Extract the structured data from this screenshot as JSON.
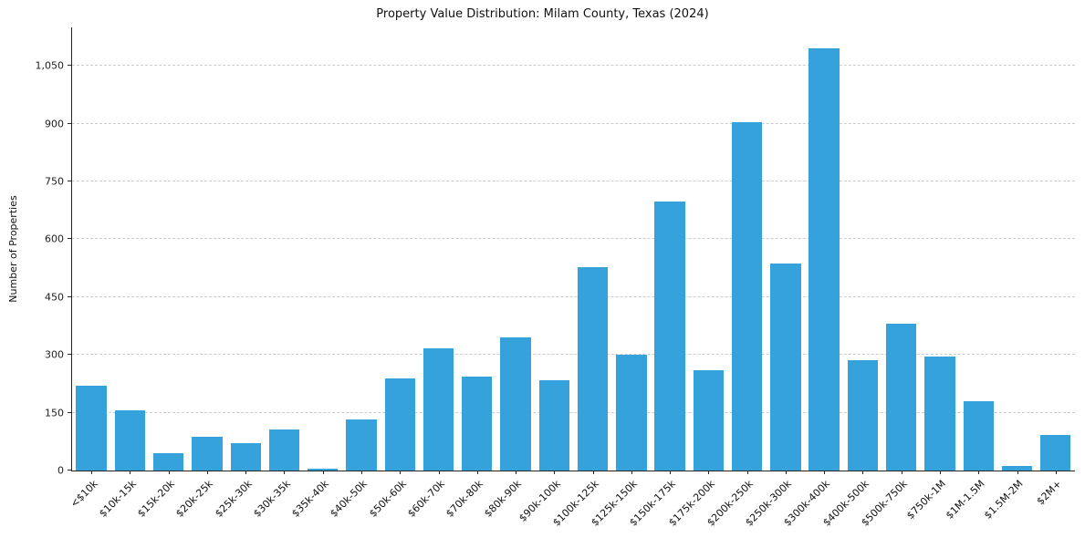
{
  "chart_data": {
    "type": "bar",
    "title": "Property Value Distribution: Milam County, Texas (2024)",
    "xlabel": "",
    "ylabel": "Number of Properties",
    "categories": [
      "<$10k",
      "$10k-15k",
      "$15k-20k",
      "$20k-25k",
      "$25k-30k",
      "$30k-35k",
      "$35k-40k",
      "$40k-50k",
      "$50k-60k",
      "$60k-70k",
      "$70k-80k",
      "$80k-90k",
      "$90k-100k",
      "$100k-125k",
      "$125k-150k",
      "$150k-175k",
      "$175k-200k",
      "$200k-250k",
      "$250k-300k",
      "$300k-400k",
      "$400k-500k",
      "$500k-750k",
      "$750k-1M",
      "$1M-1.5M",
      "$1.5M-2M",
      "$2M+"
    ],
    "values": [
      220,
      157,
      45,
      87,
      70,
      106,
      5,
      133,
      239,
      318,
      244,
      345,
      234,
      528,
      300,
      698,
      261,
      903,
      538,
      1095,
      287,
      382,
      297,
      180,
      13,
      92
    ],
    "yticks": [
      0,
      150,
      300,
      450,
      600,
      750,
      900,
      1050
    ],
    "ytick_labels": [
      "0",
      "150",
      "300",
      "450",
      "600",
      "750",
      "900",
      "1,050"
    ],
    "ylim": [
      0,
      1150
    ],
    "bar_color": "#36A2DB",
    "grid": "horizontal-dashed",
    "legend_position": "none"
  }
}
